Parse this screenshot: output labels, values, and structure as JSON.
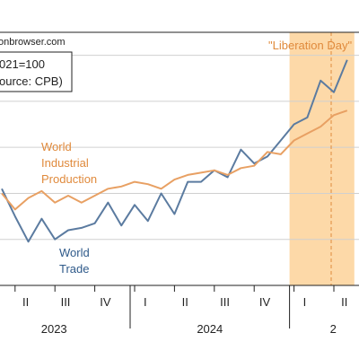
{
  "chart_data": {
    "type": "line",
    "source_text": "onbrowser.com",
    "legend_box": [
      "021=100",
      "ource: CPB)"
    ],
    "annotation": "\"Liberation Day\"",
    "series": [
      {
        "name": "World Industrial Production",
        "label_lines": [
          "World",
          "Industrial",
          "Production"
        ],
        "color": "#e8a063",
        "x": [
          "2023-03",
          "2023-04",
          "2023-05",
          "2023-06",
          "2023-07",
          "2023-08",
          "2023-09",
          "2023-10",
          "2023-11",
          "2023-12",
          "2024-01",
          "2024-02",
          "2024-03",
          "2024-04",
          "2024-05",
          "2024-06",
          "2024-07",
          "2024-08",
          "2024-09",
          "2024-10",
          "2024-11",
          "2024-12",
          "2025-01",
          "2025-02",
          "2025-03",
          "2025-04",
          "2025-05"
        ],
        "values": [
          104.0,
          103.3,
          103.8,
          104.1,
          103.6,
          103.9,
          103.6,
          103.9,
          104.2,
          104.3,
          104.5,
          104.4,
          104.2,
          104.6,
          104.8,
          104.9,
          105.0,
          104.8,
          105.1,
          105.2,
          105.8,
          105.7,
          106.3,
          106.6,
          106.9,
          107.4,
          107.6
        ]
      },
      {
        "name": "World Trade",
        "label_lines": [
          "World",
          "Trade"
        ],
        "color": "#5b7ba0",
        "x": [
          "2023-03",
          "2023-04",
          "2023-05",
          "2023-06",
          "2023-07",
          "2023-08",
          "2023-09",
          "2023-10",
          "2023-11",
          "2023-12",
          "2024-01",
          "2024-02",
          "2024-03",
          "2024-04",
          "2024-05",
          "2024-06",
          "2024-07",
          "2024-08",
          "2024-09",
          "2024-10",
          "2024-11",
          "2024-12",
          "2025-01",
          "2025-02",
          "2025-03",
          "2025-04",
          "2025-05"
        ],
        "values": [
          104.2,
          103.0,
          101.9,
          102.9,
          102.0,
          102.4,
          102.5,
          102.7,
          103.6,
          102.6,
          103.5,
          102.8,
          104.0,
          103.1,
          104.5,
          104.5,
          105.0,
          104.7,
          105.9,
          105.3,
          105.6,
          106.3,
          107.0,
          107.3,
          108.9,
          108.4,
          109.8
        ]
      }
    ],
    "x_quarter_labels": [
      "II",
      "III",
      "IV",
      "I",
      "II",
      "III",
      "IV",
      "I",
      "II"
    ],
    "year_labels": [
      "2023",
      "2024",
      "2"
    ],
    "shaded_region": {
      "from": "2025-01",
      "to": "2025-05",
      "color": "#fdd9a8"
    },
    "event_line": {
      "at": "2025-04"
    },
    "ylim": [
      100,
      111
    ],
    "grid": "horizontal",
    "y_gridlines": [
      102,
      104,
      106,
      108,
      110
    ]
  }
}
